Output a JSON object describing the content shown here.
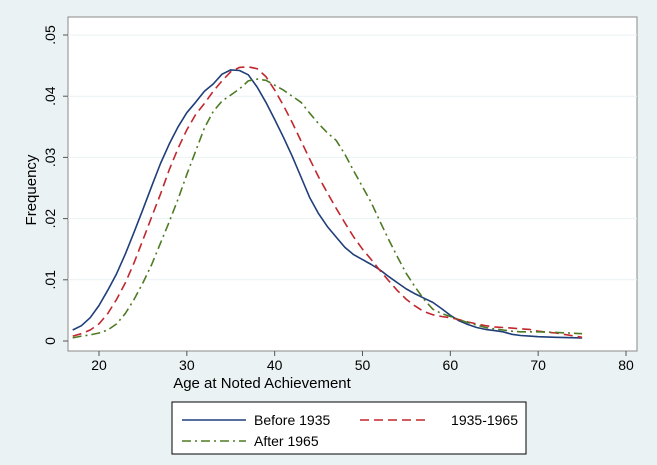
{
  "chart_data": {
    "type": "line",
    "xlabel": "Age at Noted Achievement",
    "ylabel": "Frequency",
    "xlim": [
      17,
      80
    ],
    "ylim": [
      0,
      0.05
    ],
    "xticks": [
      "20",
      "30",
      "40",
      "50",
      "60",
      "70",
      "80"
    ],
    "xtick_values": [
      20,
      30,
      40,
      50,
      60,
      70,
      80
    ],
    "yticks": [
      "0",
      ".01",
      ".02",
      ".03",
      ".04",
      ".05"
    ],
    "ytick_values": [
      0,
      0.01,
      0.02,
      0.03,
      0.04,
      0.05
    ],
    "grid": true,
    "legend_position": "bottom",
    "series": [
      {
        "name": "Before 1935",
        "color": "#1f3e7a",
        "dash": "solid",
        "points": [
          [
            17,
            0.0018
          ],
          [
            18,
            0.0025
          ],
          [
            19,
            0.0038
          ],
          [
            20,
            0.0058
          ],
          [
            21,
            0.0083
          ],
          [
            22,
            0.011
          ],
          [
            23,
            0.0142
          ],
          [
            24,
            0.0178
          ],
          [
            25,
            0.0215
          ],
          [
            26,
            0.0253
          ],
          [
            27,
            0.029
          ],
          [
            28,
            0.0322
          ],
          [
            29,
            0.035
          ],
          [
            30,
            0.0373
          ],
          [
            31,
            0.039
          ],
          [
            32,
            0.0408
          ],
          [
            33,
            0.042
          ],
          [
            34,
            0.0436
          ],
          [
            35,
            0.0443
          ],
          [
            36,
            0.0442
          ],
          [
            37,
            0.0435
          ],
          [
            38,
            0.0415
          ],
          [
            39,
            0.039
          ],
          [
            40,
            0.0362
          ],
          [
            41,
            0.0333
          ],
          [
            42,
            0.0302
          ],
          [
            43,
            0.0268
          ],
          [
            44,
            0.0234
          ],
          [
            45,
            0.0208
          ],
          [
            46,
            0.0187
          ],
          [
            47,
            0.017
          ],
          [
            48,
            0.0153
          ],
          [
            49,
            0.0141
          ],
          [
            50,
            0.0133
          ],
          [
            51,
            0.0125
          ],
          [
            52,
            0.0116
          ],
          [
            53,
            0.0105
          ],
          [
            54,
            0.0095
          ],
          [
            55,
            0.0085
          ],
          [
            56,
            0.0077
          ],
          [
            57,
            0.007
          ],
          [
            58,
            0.0063
          ],
          [
            59,
            0.0053
          ],
          [
            60,
            0.0042
          ],
          [
            61,
            0.0033
          ],
          [
            62,
            0.0027
          ],
          [
            63,
            0.0022
          ],
          [
            64,
            0.0019
          ],
          [
            65,
            0.0017
          ],
          [
            66,
            0.0015
          ],
          [
            67,
            0.0011
          ],
          [
            68,
            0.0009
          ],
          [
            69,
            0.0008
          ],
          [
            70,
            0.0007
          ],
          [
            72,
            0.0006
          ],
          [
            75,
            0.0005
          ]
        ]
      },
      {
        "name": "1935-1965",
        "color": "#c1272d",
        "dash": "long-dash",
        "points": [
          [
            17,
            0.0008
          ],
          [
            18,
            0.0012
          ],
          [
            19,
            0.0018
          ],
          [
            20,
            0.0028
          ],
          [
            21,
            0.0045
          ],
          [
            22,
            0.0068
          ],
          [
            23,
            0.0095
          ],
          [
            24,
            0.0128
          ],
          [
            25,
            0.0165
          ],
          [
            26,
            0.0203
          ],
          [
            27,
            0.024
          ],
          [
            28,
            0.028
          ],
          [
            29,
            0.0315
          ],
          [
            30,
            0.0345
          ],
          [
            31,
            0.037
          ],
          [
            32,
            0.0388
          ],
          [
            33,
            0.0408
          ],
          [
            34,
            0.0425
          ],
          [
            35,
            0.044
          ],
          [
            36,
            0.0447
          ],
          [
            37,
            0.0448
          ],
          [
            38,
            0.0445
          ],
          [
            39,
            0.0432
          ],
          [
            40,
            0.041
          ],
          [
            41,
            0.0385
          ],
          [
            42,
            0.0357
          ],
          [
            43,
            0.0327
          ],
          [
            44,
            0.0297
          ],
          [
            45,
            0.0268
          ],
          [
            46,
            0.0242
          ],
          [
            47,
            0.0217
          ],
          [
            48,
            0.0193
          ],
          [
            49,
            0.017
          ],
          [
            50,
            0.015
          ],
          [
            51,
            0.0133
          ],
          [
            52,
            0.0115
          ],
          [
            53,
            0.0098
          ],
          [
            54,
            0.0082
          ],
          [
            55,
            0.0068
          ],
          [
            56,
            0.0057
          ],
          [
            57,
            0.0048
          ],
          [
            58,
            0.0043
          ],
          [
            59,
            0.004
          ],
          [
            60,
            0.0038
          ],
          [
            61,
            0.0035
          ],
          [
            62,
            0.0031
          ],
          [
            63,
            0.0028
          ],
          [
            64,
            0.0025
          ],
          [
            65,
            0.0023
          ],
          [
            66,
            0.0022
          ],
          [
            67,
            0.0021
          ],
          [
            68,
            0.002
          ],
          [
            69,
            0.0019
          ],
          [
            70,
            0.0016
          ],
          [
            72,
            0.0013
          ],
          [
            75,
            0.0006
          ]
        ]
      },
      {
        "name": "After 1965",
        "color": "#4e7a23",
        "dash": "dash-dot",
        "points": [
          [
            17,
            0.0005
          ],
          [
            18,
            0.0008
          ],
          [
            19,
            0.001
          ],
          [
            20,
            0.0013
          ],
          [
            21,
            0.0018
          ],
          [
            22,
            0.0028
          ],
          [
            23,
            0.0045
          ],
          [
            24,
            0.0068
          ],
          [
            25,
            0.0095
          ],
          [
            26,
            0.0125
          ],
          [
            27,
            0.016
          ],
          [
            28,
            0.0195
          ],
          [
            29,
            0.0232
          ],
          [
            30,
            0.0272
          ],
          [
            31,
            0.031
          ],
          [
            32,
            0.0348
          ],
          [
            33,
            0.0375
          ],
          [
            34,
            0.0392
          ],
          [
            35,
            0.0402
          ],
          [
            36,
            0.0412
          ],
          [
            37,
            0.0425
          ],
          [
            38,
            0.0428
          ],
          [
            39,
            0.0426
          ],
          [
            40,
            0.0418
          ],
          [
            41,
            0.041
          ],
          [
            42,
            0.04
          ],
          [
            43,
            0.039
          ],
          [
            44,
            0.0372
          ],
          [
            45,
            0.0355
          ],
          [
            46,
            0.034
          ],
          [
            47,
            0.0328
          ],
          [
            48,
            0.0305
          ],
          [
            49,
            0.0278
          ],
          [
            50,
            0.0252
          ],
          [
            51,
            0.0226
          ],
          [
            52,
            0.0195
          ],
          [
            53,
            0.0165
          ],
          [
            54,
            0.0137
          ],
          [
            55,
            0.011
          ],
          [
            56,
            0.0088
          ],
          [
            57,
            0.0068
          ],
          [
            58,
            0.0052
          ],
          [
            59,
            0.0045
          ],
          [
            60,
            0.004
          ],
          [
            61,
            0.0035
          ],
          [
            62,
            0.003
          ],
          [
            63,
            0.0026
          ],
          [
            64,
            0.0022
          ],
          [
            65,
            0.002
          ],
          [
            66,
            0.0018
          ],
          [
            67,
            0.0016
          ],
          [
            68,
            0.0015
          ],
          [
            69,
            0.0015
          ],
          [
            70,
            0.0015
          ],
          [
            72,
            0.0014
          ],
          [
            75,
            0.0012
          ]
        ]
      }
    ]
  }
}
